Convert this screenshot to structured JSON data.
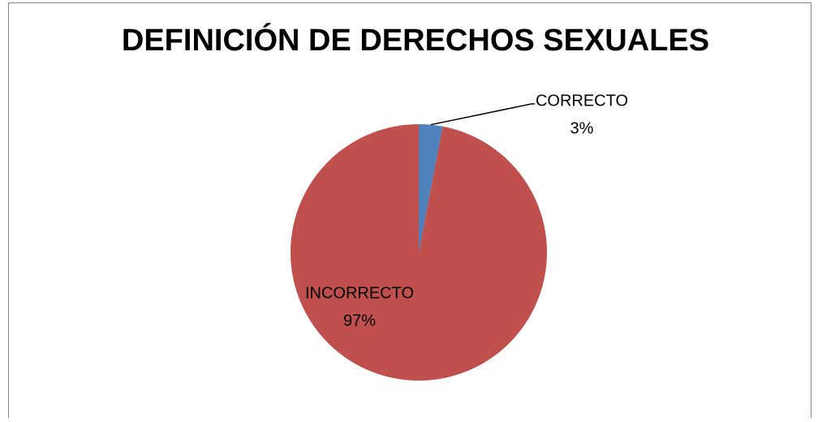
{
  "chart_data": {
    "type": "pie",
    "title": "DEFINICIÓN DE DERECHOS SEXUALES",
    "categories": [
      "CORRECTO",
      "INCORRECTO"
    ],
    "values": [
      3,
      97
    ],
    "value_labels": [
      "3%",
      "97%"
    ],
    "colors": [
      "#4f81bd",
      "#c0504d"
    ]
  }
}
